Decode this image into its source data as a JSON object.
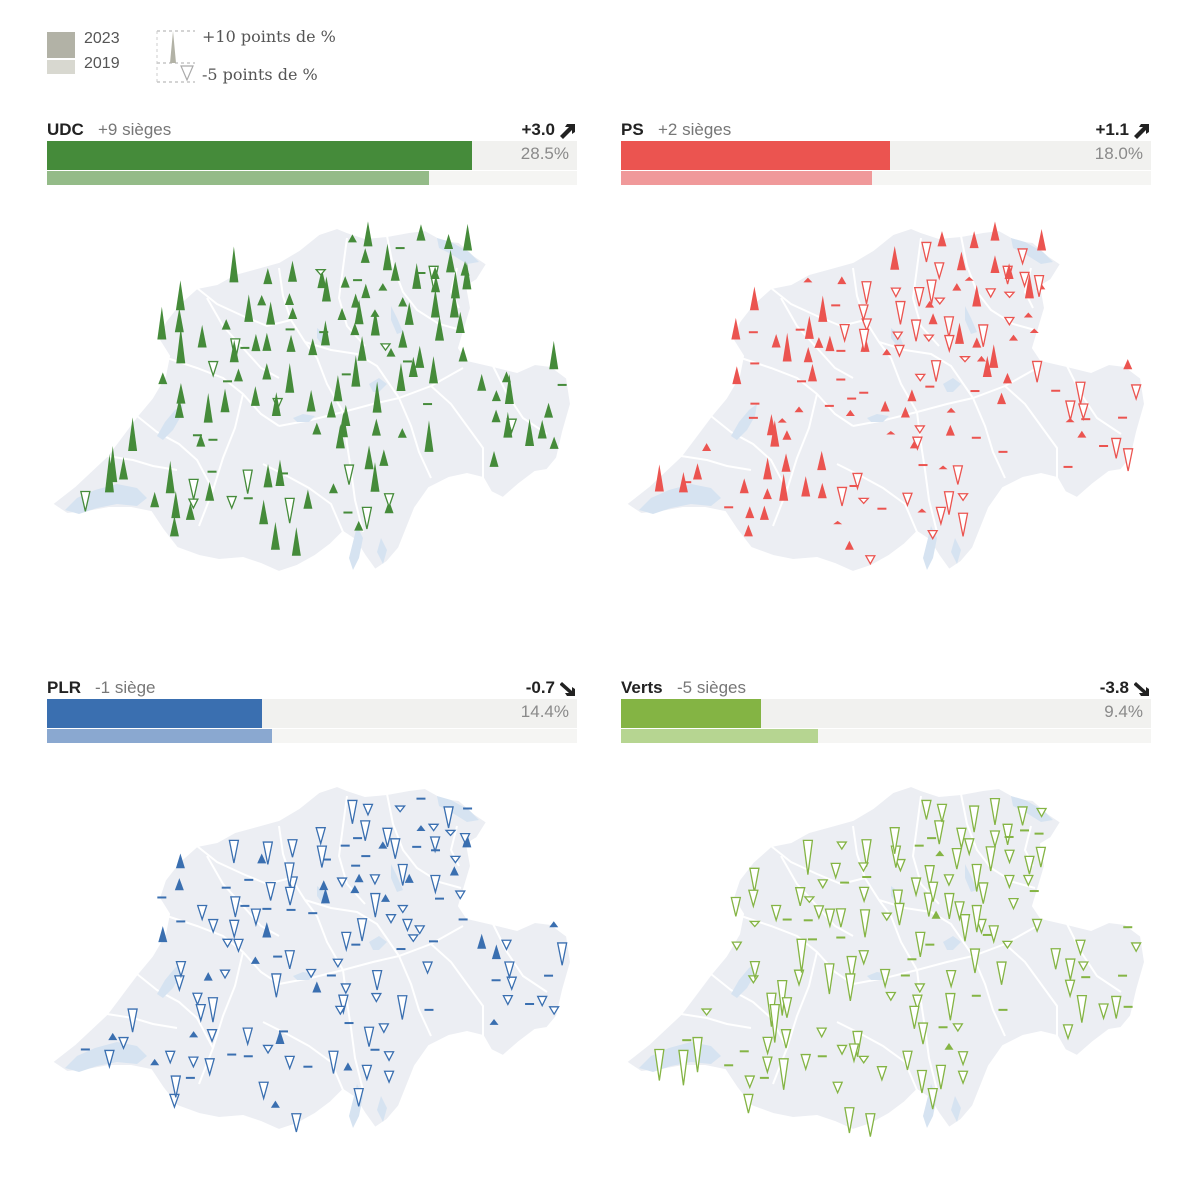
{
  "legend": {
    "year_2023": "2023",
    "year_2019": "2019",
    "up_label": "+10 points de %",
    "down_label": "-5 points de %",
    "color_2023": "#b2b2a6",
    "color_2019": "#d8d8d0"
  },
  "map_colors": {
    "land": "#eceef3",
    "border": "#ffffff",
    "lake": "#d6e3f1"
  },
  "panels": [
    {
      "party": "UDC",
      "seats": "+9 sièges",
      "delta": "+3.0",
      "direction": "up",
      "share_2023_label": "28.5%",
      "share_2023": 28.5,
      "share_2019": 25.6,
      "color": "#458b3a",
      "color_2019": "#94bb88",
      "arrow_icon": "arrow-up-right-icon"
    },
    {
      "party": "PS",
      "seats": "+2 sièges",
      "delta": "+1.1",
      "direction": "up",
      "share_2023_label": "18.0%",
      "share_2023": 18.0,
      "share_2019": 16.8,
      "color": "#eb5450",
      "color_2019": "#f0999a",
      "arrow_icon": "arrow-up-right-icon"
    },
    {
      "party": "PLR",
      "seats": "-1 siège",
      "delta": "-0.7",
      "direction": "down",
      "share_2023_label": "14.4%",
      "share_2023": 14.4,
      "share_2019": 15.1,
      "color": "#3a6fb0",
      "color_2019": "#8aa8d0",
      "arrow_icon": "arrow-down-right-icon"
    },
    {
      "party": "Verts",
      "seats": "-5 sièges",
      "delta": "-3.8",
      "direction": "down",
      "share_2023_label": "9.4%",
      "share_2023": 9.4,
      "share_2019": 13.2,
      "color": "#84b444",
      "color_2019": "#b6d591",
      "arrow_icon": "arrow-down-right-icon"
    }
  ]
}
